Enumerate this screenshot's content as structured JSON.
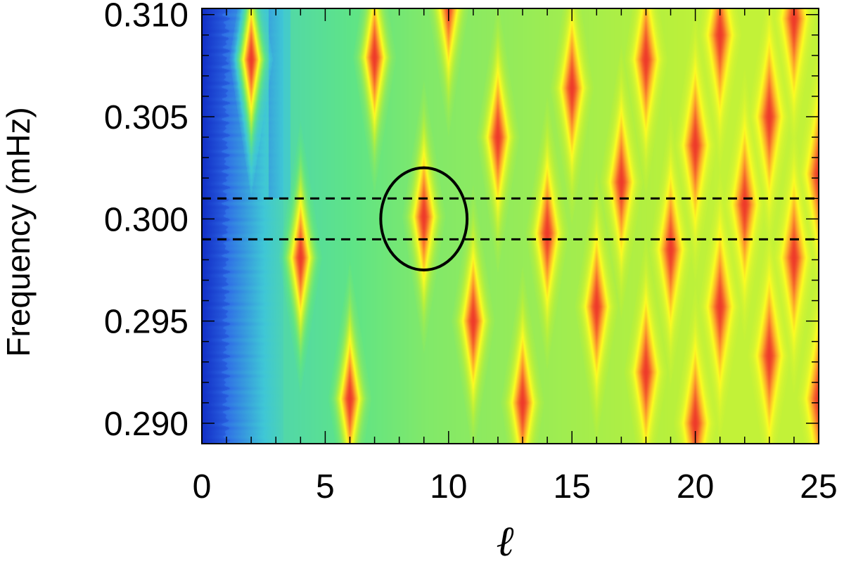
{
  "chart_data": {
    "type": "heatmap",
    "title": "",
    "xlabel": "ℓ",
    "ylabel": "Frequency (mHz)",
    "xlim": [
      0,
      25
    ],
    "ylim": [
      0.289,
      0.3103
    ],
    "x_ticks": [
      0,
      5,
      10,
      15,
      20,
      25
    ],
    "x_tick_labels": [
      "0",
      "5",
      "10",
      "15",
      "20",
      "25"
    ],
    "y_ticks": [
      0.29,
      0.295,
      0.3,
      0.305,
      0.31
    ],
    "y_tick_labels": [
      "0.290",
      "0.295",
      "0.300",
      "0.305",
      "0.310"
    ],
    "x_minor_step": 1,
    "y_minor_step": 0.001,
    "colormap": [
      "#0b1fbe",
      "#2f6ee6",
      "#3fc7d6",
      "#5fe486",
      "#b8f03c",
      "#fcfc22",
      "#fc9a2c",
      "#ee3a2a"
    ],
    "peaks": [
      {
        "l": 2,
        "freq": 0.3078
      },
      {
        "l": 4,
        "freq": 0.2981
      },
      {
        "l": 6,
        "freq": 0.2912
      },
      {
        "l": 7,
        "freq": 0.3079
      },
      {
        "l": 9,
        "freq": 0.3001
      },
      {
        "l": 10,
        "freq": 0.3107
      },
      {
        "l": 11,
        "freq": 0.295
      },
      {
        "l": 12,
        "freq": 0.304
      },
      {
        "l": 13,
        "freq": 0.291
      },
      {
        "l": 14,
        "freq": 0.2993
      },
      {
        "l": 15,
        "freq": 0.3064
      },
      {
        "l": 16,
        "freq": 0.2957
      },
      {
        "l": 17,
        "freq": 0.3018
      },
      {
        "l": 18,
        "freq": 0.2925
      },
      {
        "l": 18,
        "freq": 0.3078
      },
      {
        "l": 19,
        "freq": 0.2985
      },
      {
        "l": 20,
        "freq": 0.29
      },
      {
        "l": 20,
        "freq": 0.3036
      },
      {
        "l": 21,
        "freq": 0.2957
      },
      {
        "l": 21,
        "freq": 0.309
      },
      {
        "l": 22,
        "freq": 0.3007
      },
      {
        "l": 23,
        "freq": 0.2933
      },
      {
        "l": 23,
        "freq": 0.305
      },
      {
        "l": 24,
        "freq": 0.2981
      },
      {
        "l": 24,
        "freq": 0.3098
      },
      {
        "l": 25,
        "freq": 0.2912
      },
      {
        "l": 25,
        "freq": 0.3022
      }
    ],
    "reference_lines": [
      0.301,
      0.299
    ],
    "highlight_ellipse": {
      "l": 9,
      "freq": 0.3,
      "l_radius": 1.75,
      "freq_radius": 0.0025
    }
  }
}
